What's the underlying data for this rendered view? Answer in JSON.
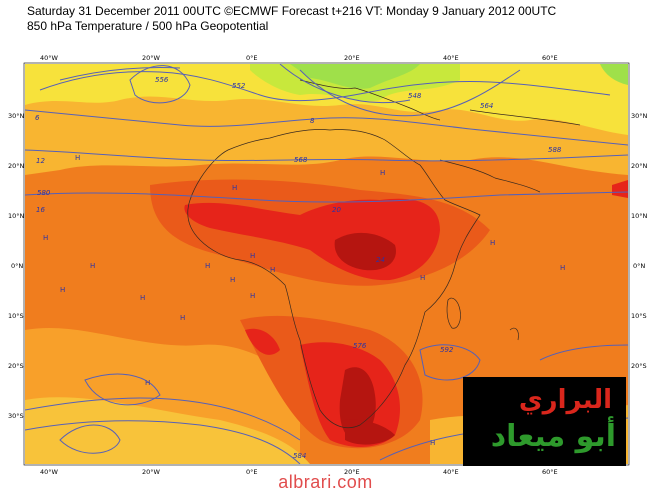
{
  "header": {
    "title_line1": "Saturday 31 December 2011 00UTC ©ECMWF Forecast t+216 VT: Monday 9 January 2012 00UTC",
    "title_line2": "850 hPa Temperature / 500 hPa Geopotential"
  },
  "axes": {
    "lon_ticks": [
      "40°W",
      "20°W",
      "0°E",
      "20°E",
      "40°E",
      "60°E"
    ],
    "lat_ticks": [
      "30°N",
      "20°N",
      "10°N",
      "0°N",
      "10°S",
      "20°S",
      "30°S"
    ]
  },
  "contour_labels": [
    "6",
    "8",
    "12",
    "16",
    "20",
    "24",
    "548",
    "552",
    "556",
    "564",
    "568",
    "576",
    "580",
    "584",
    "588",
    "592"
  ],
  "logo": {
    "line1": "البراري",
    "line2": "أبو ميعاد"
  },
  "footer": {
    "site": "albrari.com"
  },
  "colors": {
    "cold_green": "#9fe04a",
    "yellow": "#f7e23b",
    "light_orange": "#f8b531",
    "orange": "#f07d1e",
    "deep_orange": "#ea5a1a",
    "red": "#e6241a",
    "dark_red": "#b51510",
    "contour": "#5660b8"
  }
}
